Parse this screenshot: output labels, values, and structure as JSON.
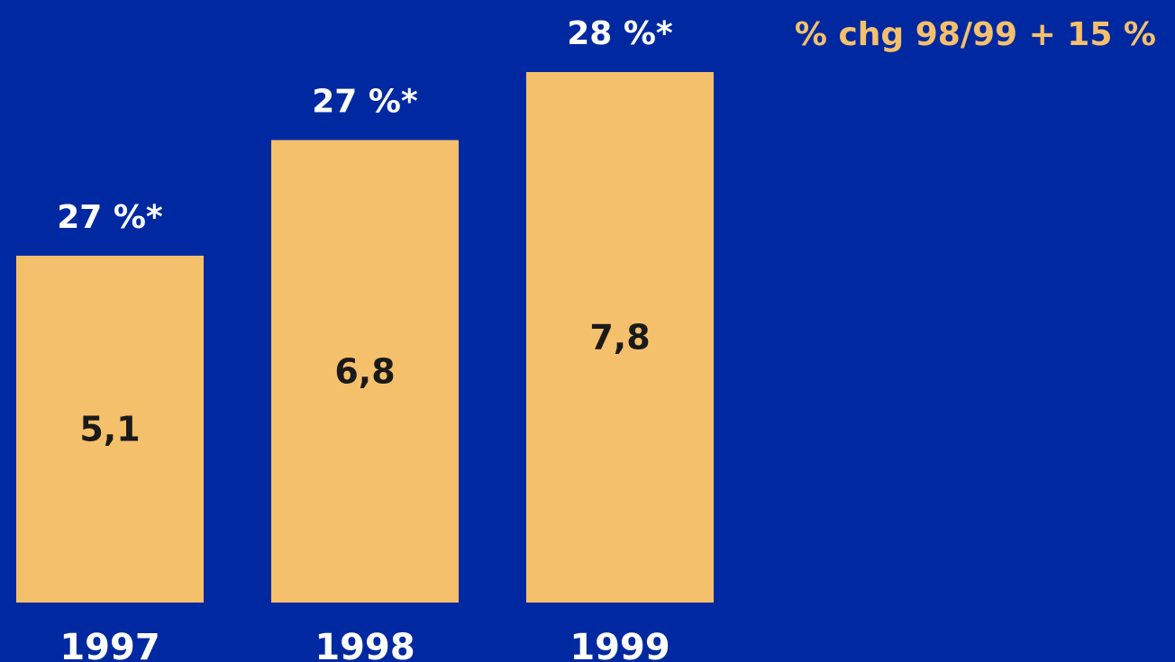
{
  "colors": {
    "background": "#0029A1",
    "bar": "#F5C06C",
    "value_text": "#1A1A1A",
    "label_text": "#FFFFFF",
    "annotation_text": "#F5C06C"
  },
  "chart_data": {
    "type": "bar",
    "title": "",
    "xlabel": "",
    "ylabel": "",
    "categories": [
      "1997",
      "1998",
      "1999"
    ],
    "values": [
      5.1,
      6.8,
      7.8
    ],
    "value_labels": [
      "5,1",
      "6,8",
      "7,8"
    ],
    "bar_annotations": [
      "27 %*",
      "27 %*",
      "28 %*"
    ],
    "annotation": "% chg  98/99 + 15 %",
    "ylim": [
      0,
      7.8
    ],
    "grid": false,
    "legend": "none"
  }
}
